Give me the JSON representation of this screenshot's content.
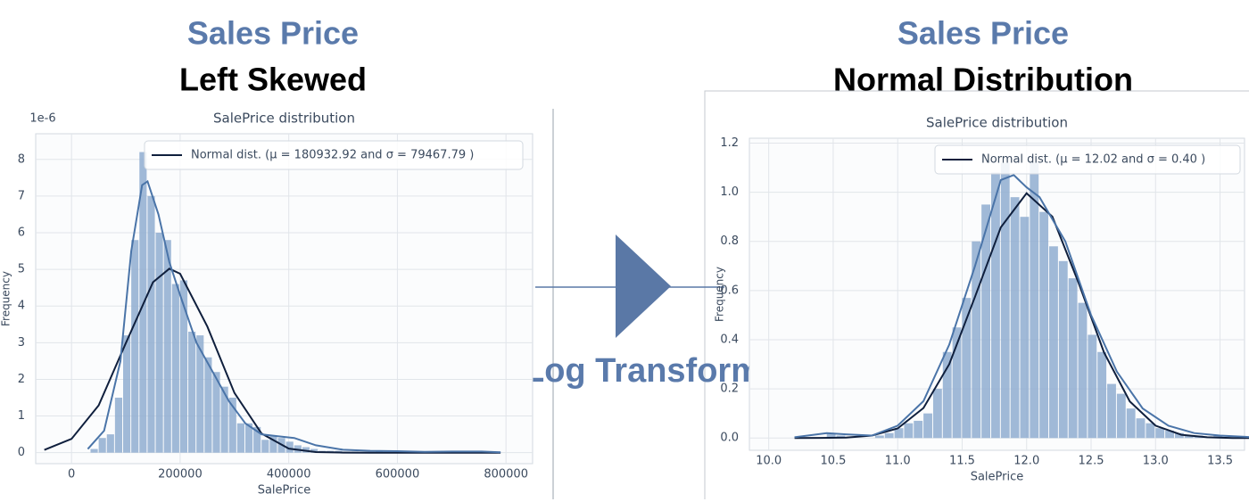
{
  "panels": [
    {
      "heading": "Sales Price",
      "subheading": "Left Skewed"
    },
    {
      "heading": "Sales Price",
      "subheading": "Normal Distribution"
    }
  ],
  "arrow_label": "Log Transform",
  "chart_data": [
    {
      "type": "histogram",
      "title": "SalePrice distribution",
      "xlabel": "SalePrice",
      "ylabel": "Frequency",
      "y_offset_label": "1e-6",
      "legend": "Normal dist. (μ =  180932.92 and σ =  79467.79 )",
      "legend_loc": "upper right",
      "grid": true,
      "color": "#8fadd0",
      "xlim": [
        -66000,
        849000
      ],
      "ylim": [
        -0.3,
        8.7
      ],
      "xticks": [
        0,
        200000,
        400000,
        600000,
        800000
      ],
      "yticks": [
        0,
        1,
        2,
        3,
        4,
        5,
        6,
        7,
        8
      ],
      "bins": [
        35000,
        50000,
        65000,
        80000,
        95000,
        110000,
        125000,
        140000,
        155000,
        170000,
        185000,
        200000,
        215000,
        230000,
        245000,
        260000,
        275000,
        290000,
        305000,
        320000,
        335000,
        350000,
        365000,
        380000,
        395000,
        410000,
        425000,
        440000,
        455000,
        470000,
        485000,
        500000,
        515000,
        530000,
        545000,
        560000,
        575000,
        590000,
        605000,
        620000,
        635000,
        650000,
        665000,
        680000,
        695000,
        710000,
        725000,
        740000,
        755000,
        770000,
        785000
      ],
      "values": [
        0.1,
        0.4,
        0.5,
        1.5,
        3.2,
        5.8,
        8.2,
        7.0,
        6.0,
        5.8,
        4.6,
        4.7,
        3.3,
        3.2,
        2.6,
        2.2,
        1.8,
        1.5,
        0.8,
        0.8,
        0.7,
        0.35,
        0.45,
        0.4,
        0.3,
        0.2,
        0.15,
        0.1,
        0.05,
        0.05,
        0.05,
        0.03,
        0.03,
        0.02,
        0.02,
        0.03,
        0.02,
        0,
        0,
        0.02,
        0,
        0,
        0,
        0,
        0,
        0.02,
        0,
        0,
        0,
        0.02
      ],
      "series": [
        {
          "name": "Normal dist. (μ =  180932.92 and σ =  79467.79 )",
          "color": "#0f1f3d",
          "x": [
            -50000,
            0,
            50000,
            100000,
            150000,
            180000,
            200000,
            250000,
            300000,
            350000,
            400000,
            450000,
            500000,
            550000,
            600000,
            650000,
            700000,
            750000,
            790000
          ],
          "values": [
            0.074,
            0.376,
            1.29,
            2.99,
            4.65,
            5.02,
            4.88,
            3.44,
            1.63,
            0.52,
            0.11,
            0.016,
            0.002,
            0,
            0,
            0,
            0,
            0,
            0
          ]
        },
        {
          "color": "#4a74a8",
          "x": [
            30000,
            60000,
            90000,
            110000,
            130000,
            140000,
            160000,
            180000,
            200000,
            230000,
            260000,
            290000,
            320000,
            350000,
            380000,
            410000,
            450000,
            500000,
            550000,
            600000,
            650000,
            700000,
            755000,
            790000
          ],
          "values": [
            0.1,
            0.6,
            2.5,
            5.5,
            7.3,
            7.4,
            6.5,
            5.2,
            4.3,
            3.0,
            2.2,
            1.4,
            0.8,
            0.5,
            0.45,
            0.4,
            0.2,
            0.08,
            0.05,
            0.04,
            0.02,
            0.03,
            0.03,
            0.01
          ]
        }
      ]
    },
    {
      "type": "histogram",
      "title": "SalePrice distribution",
      "xlabel": "SalePrice",
      "ylabel": "Frequency",
      "legend": "Normal dist. (μ =  12.02 and σ =  0.40 )",
      "legend_loc": "upper right",
      "grid": true,
      "color": "#8fadd0",
      "xlim": [
        9.85,
        13.69
      ],
      "ylim": [
        -0.05,
        1.22
      ],
      "xticks": [
        {
          "value": 10,
          "label": "10.0"
        },
        10.5,
        {
          "value": 11,
          "label": "11.0"
        },
        11.5,
        {
          "value": 12,
          "label": "12.0"
        },
        12.5,
        {
          "value": 13,
          "label": "13.0"
        },
        13.5
      ],
      "yticks": [
        {
          "value": 0,
          "label": "0.0"
        },
        0.2,
        0.4,
        0.6,
        0.8,
        {
          "value": 1,
          "label": "1.0"
        },
        1.2
      ],
      "bins": [
        10.45,
        10.525,
        10.6,
        10.675,
        10.75,
        10.825,
        10.9,
        10.975,
        11.05,
        11.125,
        11.2,
        11.275,
        11.35,
        11.425,
        11.5,
        11.575,
        11.65,
        11.725,
        11.8,
        11.875,
        11.95,
        12.025,
        12.1,
        12.175,
        12.25,
        12.325,
        12.4,
        12.475,
        12.55,
        12.625,
        12.7,
        12.775,
        12.85,
        12.925,
        13.0,
        13.075,
        13.15,
        13.225,
        13.3,
        13.375,
        13.45,
        13.525
      ],
      "values": [
        0.02,
        0.01,
        0,
        0,
        0,
        0.01,
        0.02,
        0.04,
        0.06,
        0.07,
        0.1,
        0.2,
        0.35,
        0.45,
        0.57,
        0.8,
        0.95,
        1.08,
        1.12,
        0.98,
        0.9,
        1.12,
        0.92,
        0.78,
        0.72,
        0.65,
        0.55,
        0.42,
        0.35,
        0.22,
        0.18,
        0.12,
        0.08,
        0.06,
        0.04,
        0.03,
        0.02,
        0.01,
        0.01,
        0,
        0.01
      ],
      "series": [
        {
          "name": "Normal dist. (μ =  12.02 and σ =  0.40 )",
          "color": "#0f1f3d",
          "x": [
            10.2,
            10.4,
            10.6,
            10.8,
            11.0,
            11.2,
            11.4,
            11.6,
            11.8,
            12.0,
            12.2,
            12.4,
            12.6,
            12.8,
            13.0,
            13.2,
            13.4,
            13.6,
            13.8
          ],
          "values": [
            0,
            0.0003,
            0.002,
            0.01,
            0.039,
            0.122,
            0.3,
            0.575,
            0.857,
            0.996,
            0.901,
            0.635,
            0.348,
            0.149,
            0.05,
            0.013,
            0.003,
            0,
            0
          ]
        },
        {
          "color": "#4a74a8",
          "x": [
            10.2,
            10.45,
            10.6,
            10.8,
            11.0,
            11.2,
            11.4,
            11.6,
            11.8,
            11.9,
            12.0,
            12.1,
            12.3,
            12.5,
            12.7,
            12.9,
            13.1,
            13.3,
            13.5,
            13.8
          ],
          "values": [
            0.003,
            0.02,
            0.015,
            0.01,
            0.05,
            0.15,
            0.38,
            0.7,
            1.05,
            1.07,
            1.02,
            0.98,
            0.8,
            0.5,
            0.27,
            0.12,
            0.05,
            0.02,
            0.01,
            0.002
          ]
        }
      ]
    }
  ]
}
